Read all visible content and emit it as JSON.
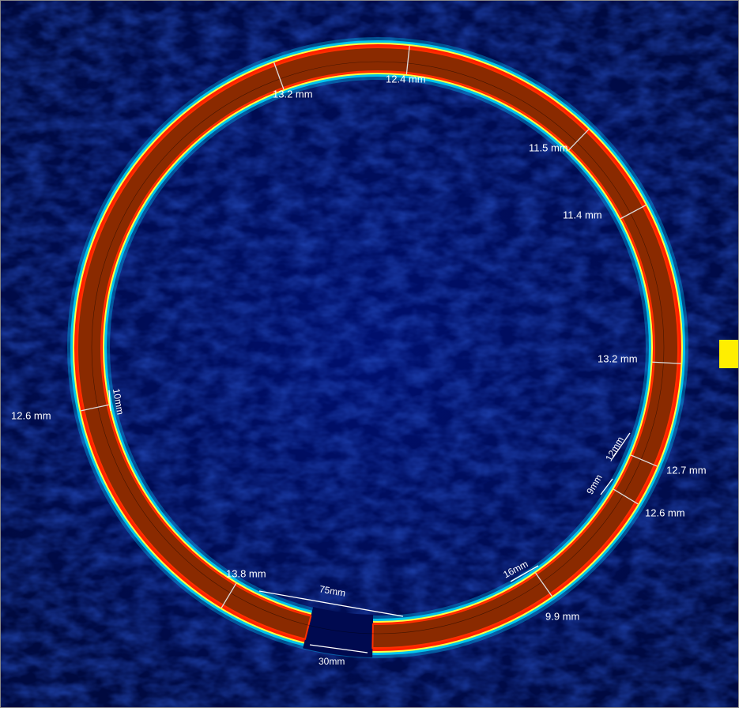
{
  "thickness_labels": [
    "12.4 mm",
    "13.2 mm",
    "11.5 mm",
    "11.4 mm",
    "13.2 mm",
    "12.7 mm",
    "12.6 mm",
    "9.9 mm",
    "13.8 mm",
    "12.6 mm"
  ],
  "length_labels": [
    "10mm",
    "12mm",
    "9mm",
    "16mm",
    "75mm",
    "30mm"
  ]
}
